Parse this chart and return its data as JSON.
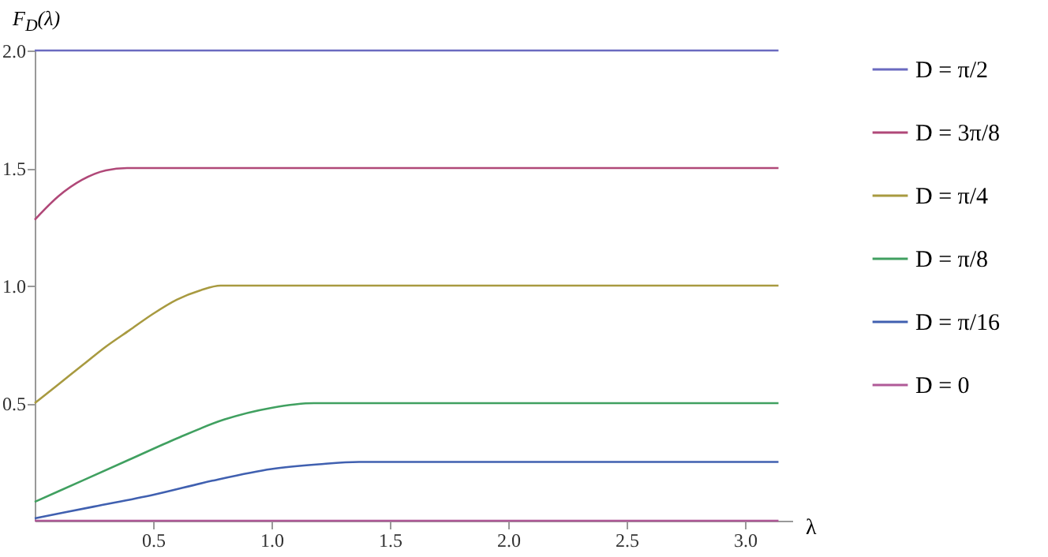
{
  "chart_data": {
    "type": "line",
    "xlabel": "λ",
    "ylabel": "F$_{D}$(λ)",
    "xlim": [
      0,
      3.2
    ],
    "ylim": [
      0,
      2
    ],
    "xticks": [
      {
        "value": 0.5,
        "label": "0.5"
      },
      {
        "value": 1,
        "label": "1.0"
      },
      {
        "value": 1.5,
        "label": "1.5"
      },
      {
        "value": 2,
        "label": "2.0"
      },
      {
        "value": 2.5,
        "label": "2.5"
      },
      {
        "value": 3,
        "label": "3.0"
      }
    ],
    "yticks": [
      {
        "value": 0.5,
        "label": "0.5"
      },
      {
        "value": 1,
        "label": "1.0"
      },
      {
        "value": 1.5,
        "label": "1.5"
      },
      {
        "value": 2,
        "label": "2.0"
      }
    ],
    "grid": false,
    "legend": "right",
    "series": [
      {
        "name": "D = π/2",
        "color": "#6a6ac0",
        "x": [
          0,
          3.1416
        ],
        "values": [
          2,
          2
        ]
      },
      {
        "name": "D = 3π/8",
        "color": "#b04878",
        "x": [
          0,
          0.1,
          0.2,
          0.3,
          0.39,
          3.1416
        ],
        "values": [
          1.28,
          1.38,
          1.45,
          1.49,
          1.5,
          1.5
        ]
      },
      {
        "name": "D = π/4",
        "color": "#a89a40",
        "x": [
          0,
          0.1,
          0.2,
          0.3,
          0.4,
          0.5,
          0.6,
          0.7,
          0.785,
          3.1416
        ],
        "values": [
          0.5,
          0.58,
          0.66,
          0.74,
          0.81,
          0.88,
          0.94,
          0.98,
          1,
          1
        ]
      },
      {
        "name": "D = π/8",
        "color": "#40a060",
        "x": [
          0,
          0.2,
          0.4,
          0.6,
          0.8,
          1,
          1.18,
          3.1416
        ],
        "values": [
          0.08,
          0.17,
          0.26,
          0.35,
          0.43,
          0.48,
          0.5,
          0.5
        ]
      },
      {
        "name": "D = π/16",
        "color": "#4060b0",
        "x": [
          0,
          0.25,
          0.5,
          0.75,
          1,
          1.2,
          1.37,
          3.1416
        ],
        "values": [
          0.01,
          0.06,
          0.11,
          0.17,
          0.22,
          0.24,
          0.25,
          0.25
        ]
      },
      {
        "name": "D = 0",
        "color": "#b05a98",
        "x": [
          0,
          3.1416
        ],
        "values": [
          0,
          0
        ]
      }
    ]
  }
}
